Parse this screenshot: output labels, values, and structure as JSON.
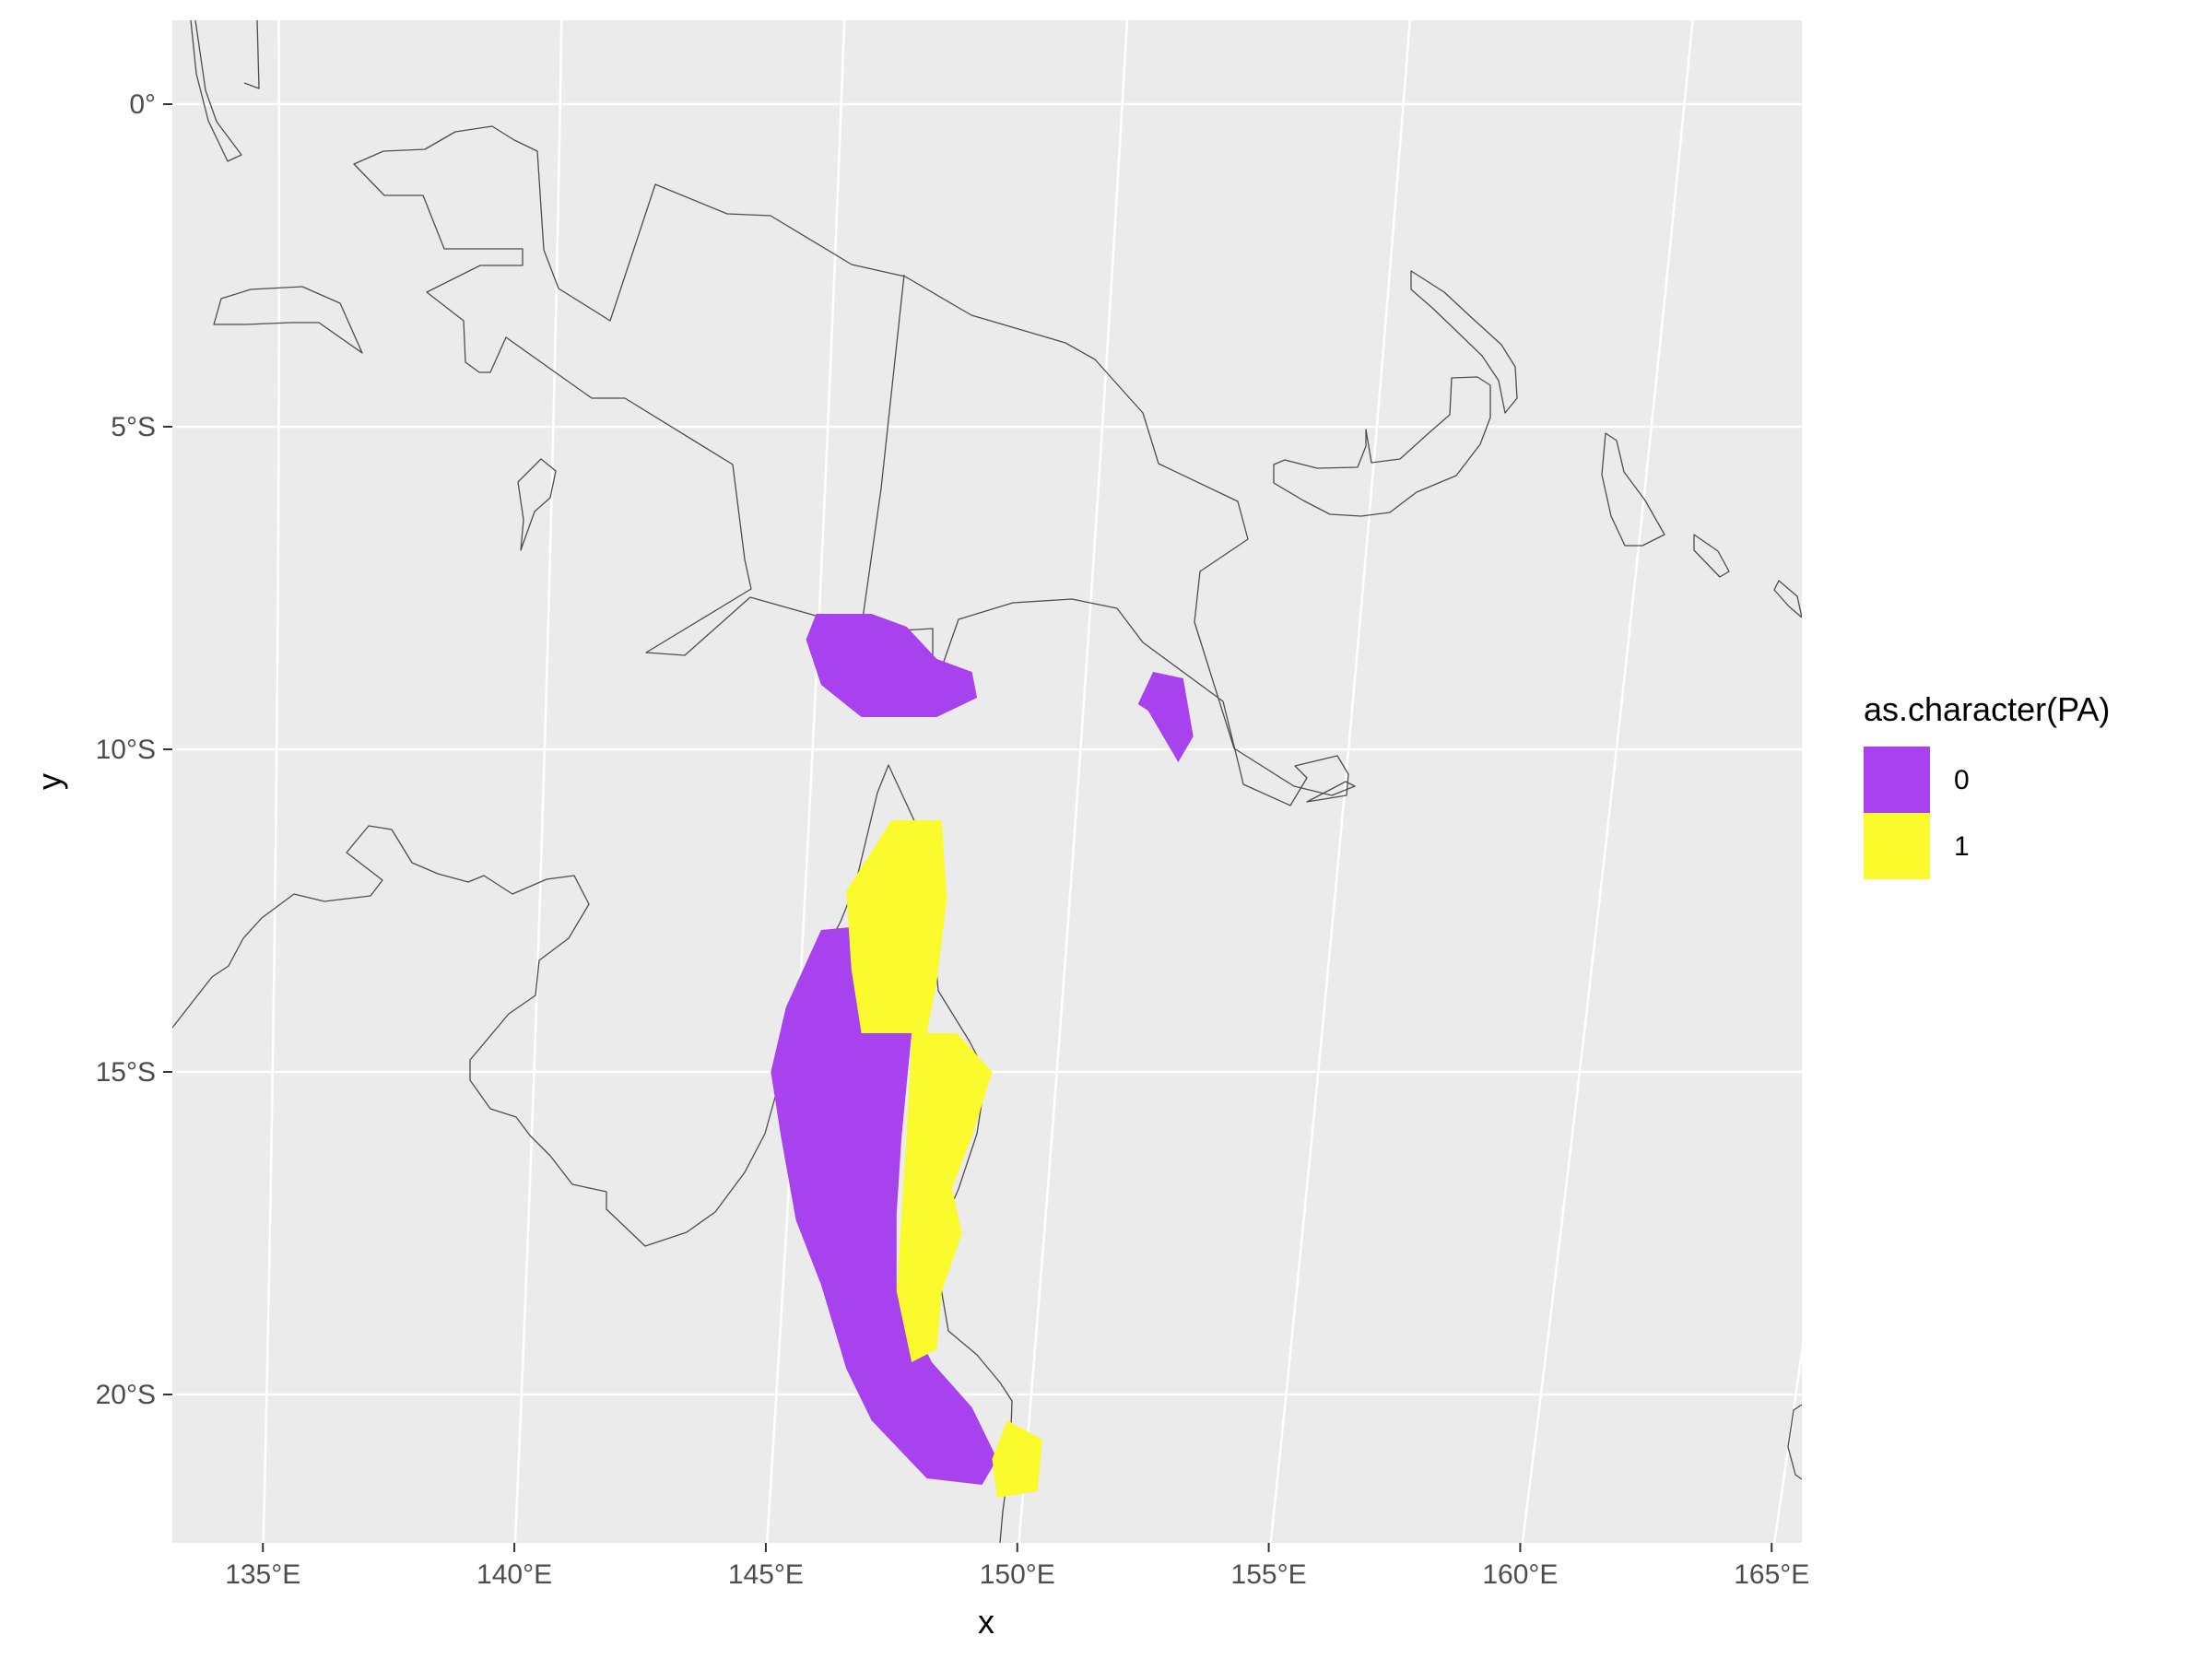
{
  "chart_data": {
    "type": "map",
    "xlabel": "x",
    "ylabel": "y",
    "x_ticks": [
      {
        "value": 135,
        "label": "135°E"
      },
      {
        "value": 140,
        "label": "140°E"
      },
      {
        "value": 145,
        "label": "145°E"
      },
      {
        "value": 150,
        "label": "150°E"
      },
      {
        "value": 155,
        "label": "155°E"
      },
      {
        "value": 160,
        "label": "160°E"
      },
      {
        "value": 165,
        "label": "165°E"
      }
    ],
    "y_ticks": [
      {
        "value": 0,
        "label": "0°"
      },
      {
        "value": -5,
        "label": "5°S"
      },
      {
        "value": -10,
        "label": "10°S"
      },
      {
        "value": -15,
        "label": "15°S"
      },
      {
        "value": -20,
        "label": "20°S"
      }
    ],
    "xlim": [
      133.2,
      165.6
    ],
    "ylim": [
      -22.3,
      1.3
    ],
    "legend": {
      "title": "as.character(PA)",
      "position": "right",
      "items": [
        {
          "label": "0",
          "color": "#A742EE"
        },
        {
          "label": "1",
          "color": "#FBFA2D"
        }
      ]
    },
    "colors": {
      "panel_background": "#EBEBEB",
      "grid": "#FFFFFF",
      "coastline": "#4D4D4D"
    },
    "regions": [
      {
        "name": "",
        "category": "0",
        "points": [
          [
            146.0,
            -7.9
          ],
          [
            147.1,
            -7.9
          ],
          [
            147.8,
            -8.1
          ],
          [
            148.4,
            -8.6
          ],
          [
            149.1,
            -8.8
          ],
          [
            149.2,
            -9.2
          ],
          [
            148.4,
            -9.5
          ],
          [
            146.9,
            -9.5
          ],
          [
            146.1,
            -9.0
          ],
          [
            145.8,
            -8.3
          ]
        ]
      },
      {
        "name": "",
        "category": "0",
        "points": [
          [
            152.7,
            -8.8
          ],
          [
            153.3,
            -8.9
          ],
          [
            153.5,
            -9.8
          ],
          [
            153.2,
            -10.2
          ],
          [
            152.6,
            -9.4
          ],
          [
            152.4,
            -9.3
          ]
        ]
      },
      {
        "name": "",
        "category": "0",
        "points": [
          [
            146.1,
            -12.8
          ],
          [
            147.5,
            -12.7
          ],
          [
            147.9,
            -14.4
          ],
          [
            147.7,
            -16.0
          ],
          [
            147.6,
            -17.2
          ],
          [
            147.6,
            -18.4
          ],
          [
            148.3,
            -19.5
          ],
          [
            149.1,
            -20.2
          ],
          [
            149.6,
            -21.0
          ],
          [
            149.3,
            -21.4
          ],
          [
            148.2,
            -21.3
          ],
          [
            147.1,
            -20.4
          ],
          [
            146.6,
            -19.6
          ],
          [
            146.1,
            -18.3
          ],
          [
            145.6,
            -17.3
          ],
          [
            145.3,
            -16.0
          ],
          [
            145.1,
            -15.0
          ],
          [
            145.4,
            -14.0
          ]
        ]
      },
      {
        "name": "",
        "category": "1",
        "points": [
          [
            147.5,
            -11.1
          ],
          [
            148.5,
            -11.1
          ],
          [
            148.6,
            -12.3
          ],
          [
            148.4,
            -13.6
          ],
          [
            148.2,
            -14.4
          ],
          [
            146.9,
            -14.4
          ],
          [
            146.7,
            -13.4
          ],
          [
            146.6,
            -12.2
          ]
        ]
      },
      {
        "name": "",
        "category": "1",
        "points": [
          [
            147.9,
            -14.4
          ],
          [
            148.8,
            -14.4
          ],
          [
            149.5,
            -15.0
          ],
          [
            149.1,
            -16.0
          ],
          [
            148.7,
            -16.8
          ],
          [
            148.9,
            -17.5
          ],
          [
            148.5,
            -18.4
          ],
          [
            148.4,
            -19.3
          ],
          [
            147.9,
            -19.5
          ],
          [
            147.6,
            -18.4
          ],
          [
            147.7,
            -17.2
          ],
          [
            147.8,
            -16.0
          ]
        ]
      },
      {
        "name": "",
        "category": "1",
        "points": [
          [
            149.8,
            -20.4
          ],
          [
            150.5,
            -20.7
          ],
          [
            150.4,
            -21.5
          ],
          [
            149.6,
            -21.6
          ],
          [
            149.5,
            -21.0
          ]
        ]
      }
    ]
  }
}
